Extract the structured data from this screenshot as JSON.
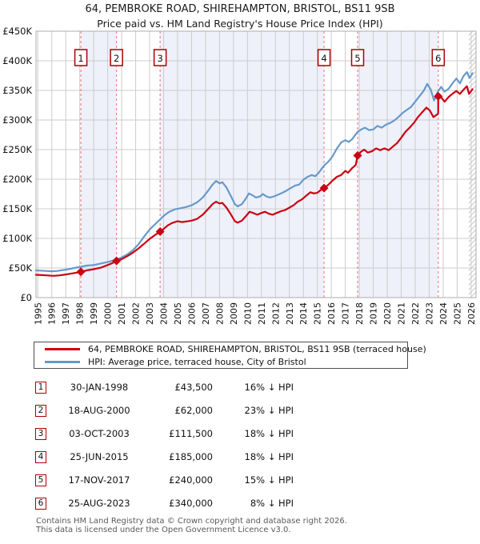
{
  "title": {
    "line1": "64, PEMBROKE ROAD, SHIREHAMPTON, BRISTOL, BS11 9SB",
    "line2": "Price paid vs. HM Land Registry's House Price Index (HPI)"
  },
  "chart_data": {
    "type": "line",
    "title": "Price paid vs. HM Land Registry's House Price Index (HPI)",
    "xlabel": "",
    "ylabel": "",
    "xlim": [
      1994.87,
      2026.35
    ],
    "ylim_gbp": [
      0,
      450000
    ],
    "x_ticks_years": [
      1995,
      1996,
      1997,
      1998,
      1999,
      2000,
      2001,
      2002,
      2003,
      2004,
      2005,
      2006,
      2007,
      2008,
      2009,
      2010,
      2011,
      2012,
      2013,
      2014,
      2015,
      2016,
      2017,
      2018,
      2019,
      2020,
      2021,
      2022,
      2023,
      2024,
      2025,
      2026
    ],
    "y_ticks_gbp_k": [
      0,
      50,
      100,
      150,
      200,
      250,
      300,
      350,
      400,
      450
    ],
    "grid": true,
    "legend_position": "below",
    "colors": {
      "price_line": "#cc0011",
      "hpi_line": "#6699cc",
      "band": "#eef1fa",
      "grid": "#cccccc",
      "border": "#adadad",
      "dashed_sale_line": "#ee8888",
      "marker_box_border": "#aa0000",
      "hatch": "#c9c9c9"
    },
    "series": [
      {
        "name": "HPI: Average price, terraced house, City of Bristol",
        "color": "#6699cc",
        "points_year_gbp_k": [
          [
            1994.87,
            46
          ],
          [
            1995.2,
            45.5
          ],
          [
            1995.6,
            45
          ],
          [
            1996.0,
            44.5
          ],
          [
            1996.4,
            45
          ],
          [
            1996.8,
            46.5
          ],
          [
            1997.2,
            48
          ],
          [
            1997.6,
            50
          ],
          [
            1998.08,
            52
          ],
          [
            1998.5,
            54
          ],
          [
            1999.0,
            55
          ],
          [
            1999.5,
            57.5
          ],
          [
            2000.0,
            60
          ],
          [
            2000.63,
            64
          ],
          [
            2001.0,
            68
          ],
          [
            2001.4,
            73
          ],
          [
            2001.8,
            80
          ],
          [
            2002.2,
            90
          ],
          [
            2002.6,
            103
          ],
          [
            2003.0,
            115
          ],
          [
            2003.4,
            124
          ],
          [
            2003.75,
            132
          ],
          [
            2004.0,
            138
          ],
          [
            2004.4,
            145
          ],
          [
            2004.8,
            149
          ],
          [
            2005.2,
            151
          ],
          [
            2005.6,
            153
          ],
          [
            2006.0,
            156
          ],
          [
            2006.4,
            161
          ],
          [
            2006.8,
            169
          ],
          [
            2007.2,
            181
          ],
          [
            2007.5,
            191
          ],
          [
            2007.75,
            197
          ],
          [
            2008.0,
            193
          ],
          [
            2008.2,
            195
          ],
          [
            2008.5,
            186
          ],
          [
            2008.8,
            172
          ],
          [
            2009.1,
            158
          ],
          [
            2009.3,
            154
          ],
          [
            2009.6,
            158
          ],
          [
            2009.9,
            168
          ],
          [
            2010.1,
            176
          ],
          [
            2010.35,
            173
          ],
          [
            2010.6,
            169
          ],
          [
            2010.9,
            171
          ],
          [
            2011.1,
            175
          ],
          [
            2011.35,
            171
          ],
          [
            2011.6,
            169
          ],
          [
            2011.9,
            171
          ],
          [
            2012.2,
            174
          ],
          [
            2012.5,
            177
          ],
          [
            2012.8,
            181
          ],
          [
            2013.1,
            185
          ],
          [
            2013.4,
            189
          ],
          [
            2013.7,
            191
          ],
          [
            2014.0,
            199
          ],
          [
            2014.3,
            204
          ],
          [
            2014.6,
            207
          ],
          [
            2014.85,
            205
          ],
          [
            2015.1,
            211
          ],
          [
            2015.48,
            223
          ],
          [
            2015.8,
            230
          ],
          [
            2016.1,
            239
          ],
          [
            2016.4,
            252
          ],
          [
            2016.7,
            262
          ],
          [
            2017.0,
            266
          ],
          [
            2017.25,
            263
          ],
          [
            2017.5,
            268
          ],
          [
            2017.88,
            280
          ],
          [
            2018.15,
            284
          ],
          [
            2018.4,
            287
          ],
          [
            2018.7,
            283
          ],
          [
            2019.0,
            284
          ],
          [
            2019.3,
            290
          ],
          [
            2019.6,
            287
          ],
          [
            2019.9,
            292
          ],
          [
            2020.2,
            295
          ],
          [
            2020.5,
            299
          ],
          [
            2020.8,
            305
          ],
          [
            2021.1,
            312
          ],
          [
            2021.4,
            317
          ],
          [
            2021.7,
            322
          ],
          [
            2022.0,
            331
          ],
          [
            2022.3,
            340
          ],
          [
            2022.6,
            349
          ],
          [
            2022.86,
            361
          ],
          [
            2023.1,
            352
          ],
          [
            2023.35,
            333
          ],
          [
            2023.6,
            347
          ],
          [
            2023.85,
            356
          ],
          [
            2024.1,
            348
          ],
          [
            2024.4,
            353
          ],
          [
            2024.7,
            363
          ],
          [
            2024.95,
            370
          ],
          [
            2025.2,
            362
          ],
          [
            2025.45,
            374
          ],
          [
            2025.7,
            381
          ],
          [
            2025.9,
            371
          ],
          [
            2026.1,
            379
          ]
        ]
      },
      {
        "name": "64, PEMBROKE ROAD, SHIREHAMPTON, BRISTOL, BS11 9SB (terraced house)",
        "color": "#cc0011",
        "points_year_gbp_k": [
          [
            1994.87,
            38.5
          ],
          [
            1995.3,
            38
          ],
          [
            1995.7,
            37.5
          ],
          [
            1996.1,
            36.8
          ],
          [
            1996.5,
            37.5
          ],
          [
            1997.0,
            39
          ],
          [
            1997.5,
            41
          ],
          [
            1998.08,
            43.5
          ],
          [
            1998.5,
            46
          ],
          [
            1999.0,
            48
          ],
          [
            1999.5,
            50.5
          ],
          [
            2000.0,
            55
          ],
          [
            2000.3,
            58
          ],
          [
            2000.63,
            62
          ],
          [
            2001.0,
            65
          ],
          [
            2001.4,
            70
          ],
          [
            2001.8,
            76
          ],
          [
            2002.2,
            83
          ],
          [
            2002.6,
            91
          ],
          [
            2003.0,
            99
          ],
          [
            2003.4,
            106
          ],
          [
            2003.75,
            111.5
          ],
          [
            2004.0,
            116
          ],
          [
            2004.3,
            122
          ],
          [
            2004.6,
            126
          ],
          [
            2005.0,
            129
          ],
          [
            2005.3,
            127.5
          ],
          [
            2005.6,
            128.5
          ],
          [
            2006.0,
            130
          ],
          [
            2006.4,
            133
          ],
          [
            2006.8,
            140
          ],
          [
            2007.2,
            150
          ],
          [
            2007.5,
            158
          ],
          [
            2007.75,
            162
          ],
          [
            2008.0,
            159
          ],
          [
            2008.2,
            160
          ],
          [
            2008.5,
            152
          ],
          [
            2008.8,
            141
          ],
          [
            2009.1,
            129
          ],
          [
            2009.3,
            126.5
          ],
          [
            2009.6,
            130
          ],
          [
            2009.9,
            138
          ],
          [
            2010.15,
            145
          ],
          [
            2010.4,
            143
          ],
          [
            2010.7,
            140
          ],
          [
            2011.0,
            143
          ],
          [
            2011.25,
            145
          ],
          [
            2011.5,
            142
          ],
          [
            2011.8,
            140
          ],
          [
            2012.1,
            143
          ],
          [
            2012.4,
            146
          ],
          [
            2012.7,
            148
          ],
          [
            2013.0,
            152
          ],
          [
            2013.3,
            156
          ],
          [
            2013.6,
            162
          ],
          [
            2013.9,
            166
          ],
          [
            2014.2,
            172
          ],
          [
            2014.5,
            178
          ],
          [
            2014.75,
            176
          ],
          [
            2015.0,
            177
          ],
          [
            2015.2,
            181
          ],
          [
            2015.48,
            185
          ],
          [
            2015.8,
            191
          ],
          [
            2016.1,
            198
          ],
          [
            2016.4,
            204
          ],
          [
            2016.7,
            207
          ],
          [
            2017.0,
            214
          ],
          [
            2017.2,
            211
          ],
          [
            2017.5,
            219
          ],
          [
            2017.75,
            224
          ],
          [
            2017.88,
            240
          ],
          [
            2018.1,
            246
          ],
          [
            2018.35,
            250
          ],
          [
            2018.6,
            245
          ],
          [
            2018.9,
            247
          ],
          [
            2019.2,
            252
          ],
          [
            2019.5,
            249
          ],
          [
            2019.8,
            252
          ],
          [
            2020.1,
            249
          ],
          [
            2020.4,
            255
          ],
          [
            2020.7,
            261
          ],
          [
            2021.0,
            270
          ],
          [
            2021.3,
            280
          ],
          [
            2021.6,
            287
          ],
          [
            2021.9,
            295
          ],
          [
            2022.2,
            305
          ],
          [
            2022.5,
            313
          ],
          [
            2022.8,
            321
          ],
          [
            2023.05,
            316
          ],
          [
            2023.3,
            305
          ],
          [
            2023.55,
            309
          ],
          [
            2023.64,
            311
          ],
          [
            2023.65,
            340
          ],
          [
            2023.9,
            337
          ],
          [
            2024.1,
            331
          ],
          [
            2024.4,
            339
          ],
          [
            2024.7,
            345
          ],
          [
            2024.95,
            349
          ],
          [
            2025.2,
            344
          ],
          [
            2025.45,
            351
          ],
          [
            2025.7,
            357
          ],
          [
            2025.85,
            344
          ],
          [
            2026.1,
            352
          ]
        ]
      }
    ],
    "sales_markers": [
      {
        "label": "1",
        "year": 1998.08,
        "price_gbp_k": 43.5
      },
      {
        "label": "2",
        "year": 2000.63,
        "price_gbp_k": 62
      },
      {
        "label": "3",
        "year": 2003.75,
        "price_gbp_k": 111.5
      },
      {
        "label": "4",
        "year": 2015.48,
        "price_gbp_k": 185
      },
      {
        "label": "5",
        "year": 2017.88,
        "price_gbp_k": 240
      },
      {
        "label": "6",
        "year": 2023.65,
        "price_gbp_k": 340
      }
    ],
    "ownership_bands_year_ranges": [
      [
        1998.08,
        2000.63
      ],
      [
        2003.75,
        2015.48
      ],
      [
        2017.88,
        2023.65
      ]
    ],
    "future_hatch_from_year": 2025.82
  },
  "legend": {
    "items": [
      {
        "label": "64, PEMBROKE ROAD, SHIREHAMPTON, BRISTOL, BS11 9SB (terraced house)",
        "color": "#cc0011"
      },
      {
        "label": "HPI: Average price, terraced house, City of Bristol",
        "color": "#6699cc"
      }
    ]
  },
  "table": {
    "rows": [
      {
        "num": "1",
        "date": "30-JAN-1998",
        "price": "£43,500",
        "vs_hpi": "16% ↓ HPI"
      },
      {
        "num": "2",
        "date": "18-AUG-2000",
        "price": "£62,000",
        "vs_hpi": "23% ↓ HPI"
      },
      {
        "num": "3",
        "date": "03-OCT-2003",
        "price": "£111,500",
        "vs_hpi": "18% ↓ HPI"
      },
      {
        "num": "4",
        "date": "25-JUN-2015",
        "price": "£185,000",
        "vs_hpi": "18% ↓ HPI"
      },
      {
        "num": "5",
        "date": "17-NOV-2017",
        "price": "£240,000",
        "vs_hpi": "15% ↓ HPI"
      },
      {
        "num": "6",
        "date": "25-AUG-2023",
        "price": "£340,000",
        "vs_hpi": "8% ↓ HPI"
      }
    ]
  },
  "footer": {
    "line1": "Contains HM Land Registry data © Crown copyright and database right 2026.",
    "line2": "This data is licensed under the Open Government Licence v3.0."
  }
}
